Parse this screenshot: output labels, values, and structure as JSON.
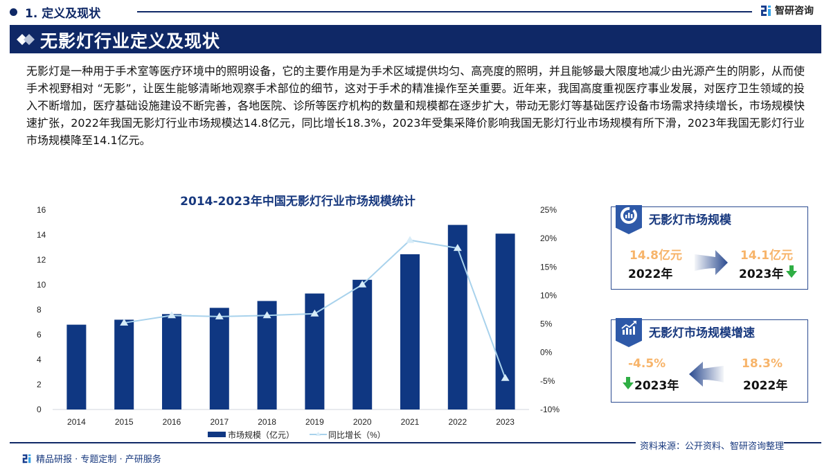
{
  "header": {
    "section_title": "1. 定义及现状",
    "brand": "智研咨询",
    "banner_title": "无影灯行业定义及现状"
  },
  "body_text": "无影灯是一种用于手术室等医疗环境中的照明设备，它的主要作用是为手术区域提供均匀、高亮度的照明，并且能够最大限度地减少由光源产生的阴影，从而使手术视野相对 “无影”，让医生能够清晰地观察手术部位的细节，这对于手术的精准操作至关重要。近年来，我国高度重视医疗事业发展，对医疗卫生领域的投入不断增加，医疗基础设施建设不断完善，各地医院、诊所等医疗机构的数量和规模都在逐步扩大，带动无影灯等基础医疗设备市场需求持续增长，市场规模快速扩张，2022年我国无影灯行业市场规模达14.8亿元，同比增长18.3%，2023年受集采降价影响我国无影灯行业市场规模有所下滑，2023年我国无影灯行业市场规模降至14.1亿元。",
  "chart_data": {
    "type": "bar",
    "title": "2014-2023年中国无影灯行业市场规模统计",
    "categories": [
      "2014",
      "2015",
      "2016",
      "2017",
      "2018",
      "2019",
      "2020",
      "2021",
      "2022",
      "2023"
    ],
    "series": [
      {
        "name": "市场规模（亿元）",
        "type": "bar",
        "axis": "left",
        "values": [
          6.8,
          7.2,
          7.65,
          8.15,
          8.7,
          9.3,
          10.4,
          12.45,
          14.8,
          14.1
        ]
      },
      {
        "name": "同比增长（%）",
        "type": "line",
        "axis": "right",
        "values": [
          null,
          5.2,
          6.5,
          6.3,
          6.5,
          6.8,
          11.9,
          19.7,
          18.3,
          -4.5
        ]
      }
    ],
    "left_axis": {
      "ticks": [
        "0",
        "2",
        "4",
        "6",
        "8",
        "10",
        "12",
        "14",
        "16"
      ],
      "ylim": [
        0,
        16
      ]
    },
    "right_axis": {
      "ticks": [
        "-10%",
        "-5%",
        "0%",
        "5%",
        "10%",
        "15%",
        "20%",
        "25%"
      ],
      "ylim": [
        -10,
        25
      ]
    },
    "legend_position": "bottom",
    "grid": false,
    "colors": {
      "bar": "#0f3782",
      "line": "#a8d2ec",
      "marker": "#d7ecf8"
    }
  },
  "cards": {
    "size": {
      "title": "无影灯市场规模",
      "from_value": "14.8亿元",
      "from_year": "2022年",
      "to_value": "14.1亿元",
      "to_year": "2023年"
    },
    "growth": {
      "title": "无影灯市场规模增速",
      "new_value": "-4.5%",
      "new_year": "2023年",
      "old_value": "18.3%",
      "old_year": "2022年"
    }
  },
  "footer": {
    "left_text": "精品研报 · 专题定制 · 产研服务",
    "source": "资料来源：公开资料、智研咨询整理"
  },
  "colors": {
    "navy": "#0f2866",
    "accent_orange": "#f7b46a",
    "down_green": "#2fae44"
  }
}
